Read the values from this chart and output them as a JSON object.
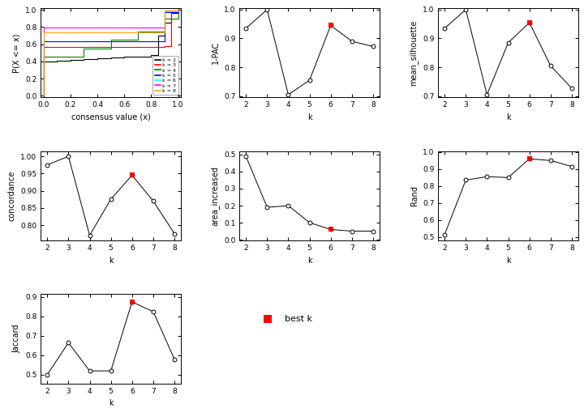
{
  "ecdf_colors": [
    "black",
    "red",
    "green",
    "blue",
    "cyan",
    "magenta",
    "orange"
  ],
  "ecdf_labels": [
    "k = 2",
    "k = 3",
    "k = 4",
    "k = 5",
    "k = 6",
    "k = 7",
    "k = 8"
  ],
  "k_values": [
    2,
    3,
    4,
    5,
    6,
    7,
    8
  ],
  "best_k": 6,
  "one_pac": [
    0.935,
    1.0,
    0.705,
    0.755,
    0.945,
    0.89,
    0.872
  ],
  "mean_silhouette": [
    0.935,
    1.0,
    0.705,
    0.885,
    0.955,
    0.805,
    0.727
  ],
  "concordance": [
    0.975,
    1.0,
    0.77,
    0.875,
    0.945,
    0.87,
    0.775
  ],
  "area_increased": [
    0.49,
    0.19,
    0.2,
    0.1,
    0.06,
    0.05,
    0.05
  ],
  "rand": [
    0.515,
    0.835,
    0.855,
    0.85,
    0.96,
    0.95,
    0.915
  ],
  "jaccard": [
    0.5,
    0.665,
    0.52,
    0.52,
    0.875,
    0.825,
    0.58
  ],
  "bg_color": "#FFFFFF",
  "ecdf_k2": {
    "x": [
      0.0,
      0.0,
      0.1,
      0.1,
      0.2,
      0.2,
      0.3,
      0.3,
      0.4,
      0.4,
      0.5,
      0.5,
      0.6,
      0.6,
      0.7,
      0.7,
      0.8,
      0.8,
      0.85,
      0.85,
      0.9,
      0.9,
      0.95,
      0.95,
      1.0,
      1.0
    ],
    "y": [
      0.0,
      0.4,
      0.4,
      0.41,
      0.41,
      0.42,
      0.42,
      0.43,
      0.43,
      0.44,
      0.44,
      0.45,
      0.45,
      0.46,
      0.46,
      0.46,
      0.46,
      0.47,
      0.47,
      0.7,
      0.7,
      0.85,
      0.85,
      0.96,
      0.96,
      1.0
    ]
  },
  "ecdf_k3": {
    "x": [
      0.0,
      0.0,
      0.9,
      0.9,
      0.95,
      0.95,
      1.0,
      1.0
    ],
    "y": [
      0.0,
      0.57,
      0.57,
      0.58,
      0.58,
      0.97,
      0.97,
      1.0
    ]
  },
  "ecdf_k4": {
    "x": [
      0.0,
      0.0,
      0.3,
      0.3,
      0.5,
      0.5,
      0.7,
      0.7,
      0.9,
      0.9,
      1.0,
      1.0
    ],
    "y": [
      0.0,
      0.46,
      0.46,
      0.55,
      0.55,
      0.65,
      0.65,
      0.75,
      0.75,
      0.9,
      0.9,
      1.0
    ]
  },
  "ecdf_k5": {
    "x": [
      0.0,
      0.0,
      0.9,
      0.9,
      1.0,
      1.0
    ],
    "y": [
      0.0,
      0.63,
      0.63,
      0.97,
      0.97,
      1.0
    ]
  },
  "ecdf_k6": {
    "x": [
      0.0,
      0.0,
      0.9,
      0.9,
      1.0,
      1.0
    ],
    "y": [
      0.0,
      0.74,
      0.74,
      0.98,
      0.98,
      1.0
    ]
  },
  "ecdf_k7": {
    "x": [
      0.0,
      0.0,
      0.9,
      0.9,
      1.0,
      1.0
    ],
    "y": [
      0.0,
      0.79,
      0.79,
      0.99,
      0.99,
      1.0
    ]
  },
  "ecdf_k8": {
    "x": [
      0.0,
      0.0,
      0.9,
      0.9,
      1.0,
      1.0
    ],
    "y": [
      0.0,
      0.74,
      0.74,
      0.99,
      0.99,
      1.0
    ]
  }
}
